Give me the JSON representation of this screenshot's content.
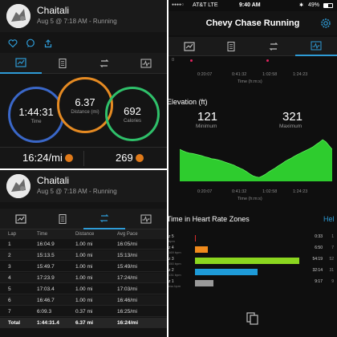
{
  "activity": {
    "user": "Chaitali",
    "meta": "Aug 5 @ 7:18 AM - Running"
  },
  "summary": {
    "time_value": "1:44:31",
    "time_label": "Time",
    "distance_value": "6.37",
    "distance_label": "Distance (mi)",
    "calories_value": "692",
    "calories_label": "Calories",
    "pace": "16:24/mi",
    "heart_rate": "269"
  },
  "laps": {
    "headers": [
      "Lap",
      "Time",
      "Distance",
      "Avg Pace"
    ],
    "rows": [
      [
        "1",
        "16:04.9",
        "1.00 mi",
        "16:05/mi"
      ],
      [
        "2",
        "15:13.5",
        "1.00 mi",
        "15:13/mi"
      ],
      [
        "3",
        "15:49.7",
        "1.00 mi",
        "15:49/mi"
      ],
      [
        "4",
        "17:23.9",
        "1.00 mi",
        "17:24/mi"
      ],
      [
        "5",
        "17:03.4",
        "1.00 mi",
        "17:03/mi"
      ],
      [
        "6",
        "16:46.7",
        "1.00 mi",
        "16:46/mi"
      ],
      [
        "7",
        "6:09.3",
        "0.37 mi",
        "16:25/mi"
      ]
    ],
    "total": [
      "Total",
      "1:44:31.4",
      "6.37 mi",
      "16:24/mi"
    ]
  },
  "status_bar": {
    "carrier": "AT&T  LTE",
    "time": "9:40 AM",
    "battery": "49%"
  },
  "detail": {
    "title": "Chevy Chase Running",
    "top_axis_start": "0",
    "time_ticks": [
      "0:20:07",
      "0:41:32",
      "1:02:58",
      "1:24:23"
    ],
    "time_axis_label": "Time (h:m:s)",
    "elevation_title": "Elevation (ft)",
    "elev_min_value": "121",
    "elev_min_label": "Minimum",
    "elev_max_value": "321",
    "elev_max_label": "Maximum",
    "hr_zone_title": "Time in Heart Rate Zones",
    "help_label": "Hel"
  },
  "chart_data": {
    "type": "area",
    "title": "Elevation (ft)",
    "xlabel": "Time (h:m:s)",
    "ylabel": "",
    "x_ticks": [
      "0:20:07",
      "0:41:32",
      "1:02:58",
      "1:24:23"
    ],
    "series": [
      {
        "values": [
          270,
          262,
          255,
          250,
          248,
          244,
          240,
          236,
          230,
          226,
          220,
          218,
          214,
          210,
          204,
          198,
          192,
          186,
          178,
          170,
          162,
          152,
          140,
          130,
          124,
          121,
          128,
          138,
          150,
          160,
          170,
          182,
          192,
          204,
          214,
          222,
          232,
          242,
          250,
          258,
          266,
          274,
          284,
          296,
          308,
          321,
          310,
          290,
          270
        ]
      }
    ],
    "ylim": [
      100,
      330
    ],
    "color": "#2ecc2e"
  },
  "hr_zones": [
    {
      "name": "z 5",
      "sub": "bpm",
      "time": "0:33",
      "pct": "1",
      "fraction": 0.005,
      "color": "#d62b2b"
    },
    {
      "name": "z 4",
      "sub": "169 bpm",
      "time": "6:50",
      "pct": "7",
      "fraction": 0.065,
      "color": "#f08a1c"
    },
    {
      "name": "z 3",
      "sub": "150 bpm",
      "time": "54:19",
      "pct": "52",
      "fraction": 0.52,
      "color": "#8bd61f"
    },
    {
      "name": "z 2",
      "sub": "131 bpm",
      "time": "32:14",
      "pct": "31",
      "fraction": 0.31,
      "color": "#1e9bd8"
    },
    {
      "name": "z 1",
      "sub": "ess bpm",
      "time": "9:17",
      "pct": "9",
      "fraction": 0.09,
      "color": "#9a9a9a"
    }
  ]
}
